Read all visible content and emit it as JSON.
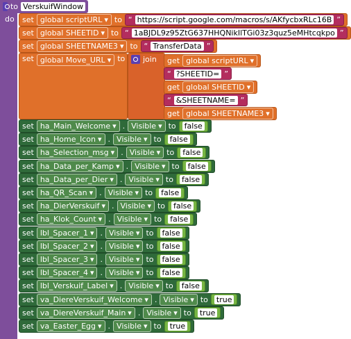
{
  "procedure": {
    "keyword": "to",
    "name": "VerskuifWindow",
    "do": "do"
  },
  "keywords": {
    "set": "set",
    "to": "to",
    "get": "get",
    "join": "join",
    "dot": ".",
    "open_quote": "“",
    "close_quote": "”",
    "dropdown": "▾"
  },
  "global_sets": [
    {
      "variable": "global scriptURL",
      "text": "https://script.google.com/macros/s/AKfycbxRLc16B"
    },
    {
      "variable": "global SHEETID",
      "text": "1aBJDL9z95ZtG637HHQNikIlTGi03z3quz5eMHtcqkpo"
    },
    {
      "variable": "global SHEETNAME3",
      "text": "TransferData"
    }
  ],
  "move_url": {
    "variable": "global Move_URL",
    "items": [
      {
        "variable": "global scriptURL"
      },
      {
        "text": "?SHEETID="
      },
      {
        "variable": "global SHEETID"
      },
      {
        "text": "&SHEETNAME="
      },
      {
        "variable": "global SHEETNAME3"
      }
    ]
  },
  "component_sets": [
    {
      "component": "ha_Main_Welcome",
      "property": "Visible",
      "value": "false"
    },
    {
      "component": "ha_Home_Icon",
      "property": "Visible",
      "value": "false"
    },
    {
      "component": "ha_Selection_msg",
      "property": "Visible",
      "value": "false"
    },
    {
      "component": "ha_Data_per_Kamp",
      "property": "Visible",
      "value": "false"
    },
    {
      "component": "ha_Data_per_Dier",
      "property": "Visible",
      "value": "false"
    },
    {
      "component": "ha_QR_Scan",
      "property": "Visible",
      "value": "false"
    },
    {
      "component": "ha_DierVerskuif",
      "property": "Visible",
      "value": "false"
    },
    {
      "component": "ha_Klok_Count",
      "property": "Visible",
      "value": "false"
    },
    {
      "component": "lbl_Spacer_1",
      "property": "Visible",
      "value": "false"
    },
    {
      "component": "lbl_Spacer_2",
      "property": "Visible",
      "value": "false"
    },
    {
      "component": "lbl_Spacer_3",
      "property": "Visible",
      "value": "false"
    },
    {
      "component": "lbl_Spacer_4",
      "property": "Visible",
      "value": "false"
    },
    {
      "component": "lbl_Verskuif_Label",
      "property": "Visible",
      "value": "false"
    },
    {
      "component": "va_DiereVerskuif_Welcome",
      "property": "Visible",
      "value": "true"
    },
    {
      "component": "va_DiereVerskuif_Main",
      "property": "Visible",
      "value": "true"
    },
    {
      "component": "va_Easter_Egg",
      "property": "Visible",
      "value": "true"
    }
  ]
}
